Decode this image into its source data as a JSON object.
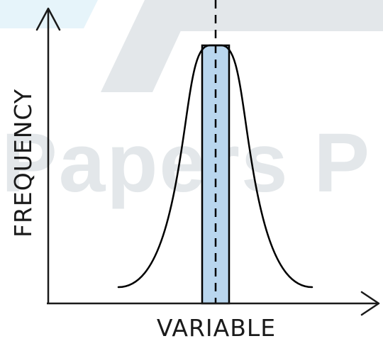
{
  "watermark": {
    "text": "Papers P",
    "color": "#e3e7ea",
    "accent_color": "#e6f4fa"
  },
  "axes": {
    "x_label": "VARIABLE",
    "y_label": "FREQUENCY",
    "color": "#1a1a1a"
  },
  "curve": {
    "shape": "bell-curve",
    "color": "#000000"
  },
  "mean_band": {
    "fill_color": "#b9d6ee",
    "stroke_color": "#000000"
  },
  "mean_line": {
    "style": "dashed",
    "color": "#000000"
  }
}
